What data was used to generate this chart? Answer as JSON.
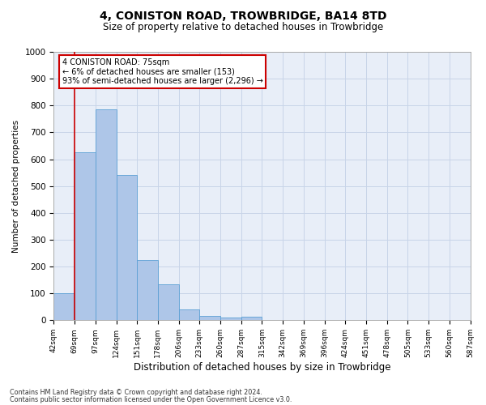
{
  "title_line1": "4, CONISTON ROAD, TROWBRIDGE, BA14 8TD",
  "title_line2": "Size of property relative to detached houses in Trowbridge",
  "xlabel": "Distribution of detached houses by size in Trowbridge",
  "ylabel": "Number of detached properties",
  "bin_labels": [
    "42sqm",
    "69sqm",
    "97sqm",
    "124sqm",
    "151sqm",
    "178sqm",
    "206sqm",
    "233sqm",
    "260sqm",
    "287sqm",
    "315sqm",
    "342sqm",
    "369sqm",
    "396sqm",
    "424sqm",
    "451sqm",
    "478sqm",
    "505sqm",
    "533sqm",
    "560sqm",
    "587sqm"
  ],
  "bar_values": [
    100,
    625,
    785,
    540,
    225,
    135,
    40,
    17,
    10,
    12,
    0,
    0,
    0,
    0,
    0,
    0,
    0,
    0,
    0,
    0
  ],
  "bar_color": "#aec6e8",
  "bar_edge_color": "#5a9fd4",
  "red_line_x": 1,
  "bin_edges_numeric": [
    0,
    1,
    2,
    3,
    4,
    5,
    6,
    7,
    8,
    9,
    10,
    11,
    12,
    13,
    14,
    15,
    16,
    17,
    18,
    19,
    20
  ],
  "annotation_text": "4 CONISTON ROAD: 75sqm\n← 6% of detached houses are smaller (153)\n93% of semi-detached houses are larger (2,296) →",
  "annotation_box_color": "#ffffff",
  "annotation_box_edge": "#cc0000",
  "ylim": [
    0,
    1000
  ],
  "yticks": [
    0,
    100,
    200,
    300,
    400,
    500,
    600,
    700,
    800,
    900,
    1000
  ],
  "grid_color": "#c8d4e8",
  "bg_color": "#e8eef8",
  "footer_line1": "Contains HM Land Registry data © Crown copyright and database right 2024.",
  "footer_line2": "Contains public sector information licensed under the Open Government Licence v3.0.",
  "red_line_color": "#cc0000",
  "title_fontsize": 10,
  "subtitle_fontsize": 8.5
}
